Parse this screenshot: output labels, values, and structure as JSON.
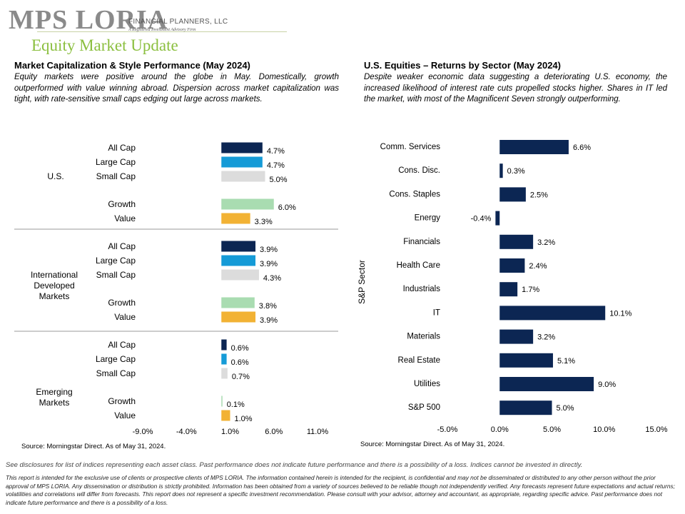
{
  "logo": {
    "main": "MPS LORIA",
    "sub": "FINANCIAL PLANNERS, LLC",
    "tagline": "A Registered Investment Advisory Firm"
  },
  "page_title": "Equity Market Update",
  "left": {
    "title": "Market Capitalization & Style Performance (May 2024)",
    "body": "Equity markets were positive around the globe in May. Domestically, growth outperformed with value winning abroad. Dispersion across market capitalization was tight, with rate-sensitive small caps edging out large across markets.",
    "source": "Source: Morningstar Direct. As of May 31, 2024."
  },
  "right": {
    "title": "U.S. Equities – Returns by Sector (May 2024)",
    "body": "Despite weaker economic data suggesting a deteriorating U.S. economy, the increased likelihood of interest rate cuts propelled stocks higher. Shares in IT led the market, with most of the Magnificent Seven strongly outperforming.",
    "source": "Source: Morningstar Direct. As of May 31, 2024."
  },
  "chart_data": [
    {
      "type": "bar",
      "orientation": "horizontal",
      "groups": [
        {
          "name": "U.S.",
          "categories": [
            "All Cap",
            "Large Cap",
            "Small Cap",
            "Growth",
            "Value"
          ],
          "values": [
            4.7,
            4.7,
            5.0,
            6.0,
            3.3
          ],
          "labels": [
            "4.7%",
            "4.7%",
            "5.0%",
            "6.0%",
            "3.3%"
          ]
        },
        {
          "name": "International Developed Markets",
          "categories": [
            "All Cap",
            "Large Cap",
            "Small Cap",
            "Growth",
            "Value"
          ],
          "values": [
            3.9,
            3.9,
            4.3,
            3.8,
            3.9
          ],
          "labels": [
            "3.9%",
            "3.9%",
            "4.3%",
            "3.8%",
            "3.9%"
          ]
        },
        {
          "name": "Emerging Markets",
          "categories": [
            "All Cap",
            "Large Cap",
            "Small Cap",
            "Growth",
            "Value"
          ],
          "values": [
            0.6,
            0.6,
            0.7,
            0.1,
            1.0
          ],
          "labels": [
            "0.6%",
            "0.6%",
            "0.7%",
            "0.1%",
            "1.0%"
          ]
        }
      ],
      "category_colors": {
        "All Cap": "#0c2653",
        "Large Cap": "#159bd7",
        "Small Cap": "#dcdcdc",
        "Growth": "#a9dcb1",
        "Value": "#f2b234"
      },
      "xlim": [
        -9.0,
        11.0
      ],
      "xticks": [
        "-9.0%",
        "-4.0%",
        "1.0%",
        "6.0%",
        "11.0%"
      ],
      "grid": false
    },
    {
      "type": "bar",
      "orientation": "horizontal",
      "ylabel": "S&P Sector",
      "categories": [
        "Comm. Services",
        "Cons. Disc.",
        "Cons. Staples",
        "Energy",
        "Financials",
        "Health Care",
        "Industrials",
        "IT",
        "Materials",
        "Real Estate",
        "Utilities",
        "S&P 500"
      ],
      "values": [
        6.6,
        0.3,
        2.5,
        -0.4,
        3.2,
        2.4,
        1.7,
        10.1,
        3.2,
        5.1,
        9.0,
        5.0
      ],
      "labels": [
        "6.6%",
        "0.3%",
        "2.5%",
        "-0.4%",
        "3.2%",
        "2.4%",
        "1.7%",
        "10.1%",
        "3.2%",
        "5.1%",
        "9.0%",
        "5.0%"
      ],
      "color": "#0c2653",
      "xlim": [
        -5.0,
        15.0
      ],
      "xticks": [
        "-5.0%",
        "0.0%",
        "5.0%",
        "10.0%",
        "15.0%"
      ],
      "grid": false
    }
  ],
  "disclaimer_short": "See disclosures for list of indices representing each asset class. Past performance does not indicate future performance and there is a possibility of a loss. Indices cannot be invested in directly.",
  "disclaimer_long": "This report is intended for the exclusive use of clients or prospective clients of MPS LORIA. The information contained herein is intended for the recipient, is confidential and may not be disseminated or distributed to any other person without the prior approval of MPS LORIA. Any dissemination or distribution is strictly prohibited. Information has been obtained from a variety of sources believed to be reliable though not independently verified. Any forecasts represent future expectations and actual returns; volatilities and correlations will differ from forecasts. This report does not represent a specific investment recommendation. Please consult with your advisor, attorney and accountant, as appropriate, regarding specific advice. Past performance does not indicate future performance and there is a possibility of a loss."
}
